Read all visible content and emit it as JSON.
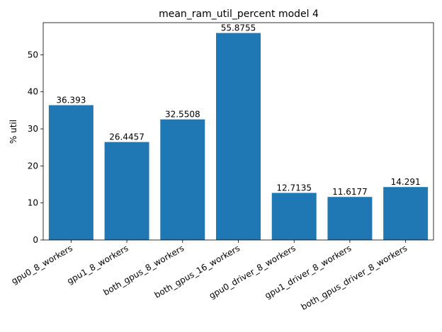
{
  "chart_data": {
    "type": "bar",
    "title": "mean_ram_util_percent model 4",
    "xlabel": "",
    "ylabel": "% util",
    "categories": [
      "gpu0_8_workers",
      "gpu1_8_workers",
      "both_gpus_8_workers",
      "both_gpus_16_workers",
      "gpu0_driver_8_workers",
      "gpu1_driver_8_workers",
      "both_gpus_driver_8_workers"
    ],
    "values": [
      36.393,
      26.4457,
      32.5508,
      55.8755,
      12.7135,
      11.6177,
      14.291
    ],
    "value_labels": [
      "36.393",
      "26.4457",
      "32.5508",
      "55.8755",
      "12.7135",
      "11.6177",
      "14.291"
    ],
    "yticks": [
      0,
      10,
      20,
      30,
      40,
      50
    ],
    "ylim": [
      0,
      58.67
    ],
    "grid": false,
    "legend": "none",
    "bar_color": "#1f77b4"
  }
}
